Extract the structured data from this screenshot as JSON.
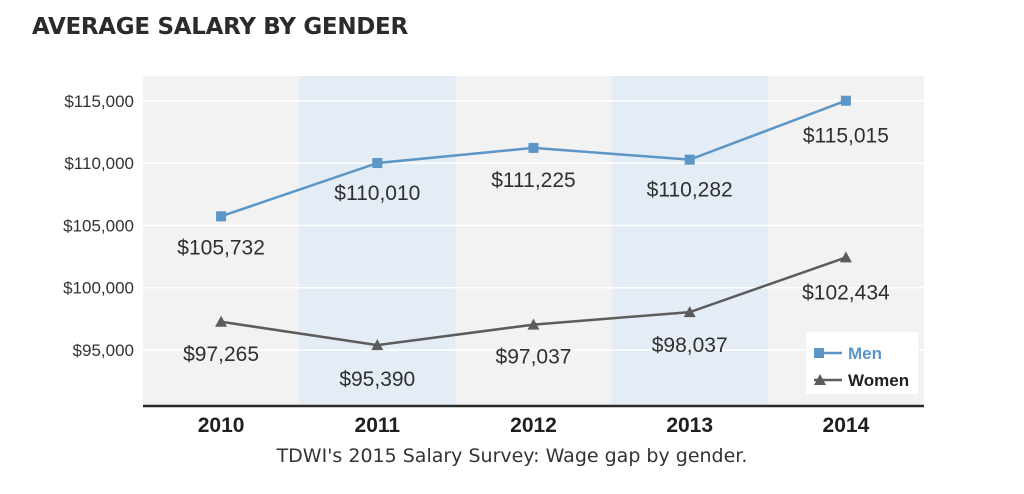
{
  "chart_data": {
    "type": "line",
    "title": "AVERAGE SALARY BY GENDER",
    "categories": [
      "2010",
      "2011",
      "2012",
      "2013",
      "2014"
    ],
    "ylim": [
      90500,
      117000
    ],
    "yticks": [
      95000,
      100000,
      105000,
      110000,
      115000
    ],
    "ytick_labels": [
      "$95,000",
      "$100,000",
      "$105,000",
      "$110,000",
      "$115,000"
    ],
    "legend_position": "bottom-right",
    "series": [
      {
        "name": "Men",
        "color": "#5b96c6",
        "marker": "square",
        "values": [
          105732,
          110010,
          111225,
          110282,
          115015
        ],
        "labels": [
          "$105,732",
          "$110,010",
          "$111,225",
          "$110,282",
          "$115,015"
        ]
      },
      {
        "name": "Women",
        "color": "#5c5c5c",
        "marker": "triangle",
        "values": [
          97265,
          95390,
          97037,
          98037,
          102434
        ],
        "labels": [
          "$97,265",
          "$95,390",
          "$97,037",
          "$98,037",
          "$102,434"
        ]
      }
    ]
  },
  "caption": "TDWI's 2015 Salary Survey: Wage gap by gender.",
  "colors": {
    "plot_bg": "#f2f2f2",
    "band": "#e4ecf5",
    "axis": "#2a2a2a",
    "grid": "#ffffff"
  }
}
